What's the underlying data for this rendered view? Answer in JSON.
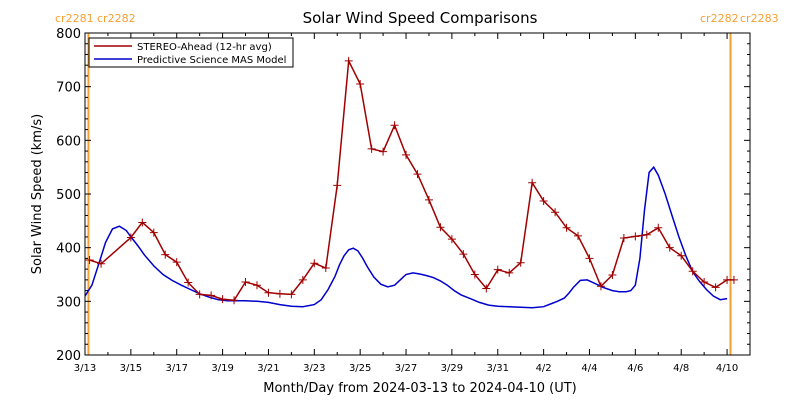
{
  "chart_data": {
    "type": "line",
    "title": "Solar Wind Speed Comparisons",
    "xlabel": "Month/Day from 2024-03-13 to 2024-04-10 (UT)",
    "ylabel": "Solar Wind Speed (km/s)",
    "start_date": "2024-03-13",
    "xlim": [
      0,
      29
    ],
    "ylim": [
      200,
      800
    ],
    "y_ticks": [
      "200",
      "300",
      "400",
      "500",
      "600",
      "700",
      "800"
    ],
    "x_ticks": [
      {
        "day": 0,
        "label": "3/13"
      },
      {
        "day": 2,
        "label": "3/15"
      },
      {
        "day": 4,
        "label": "3/17"
      },
      {
        "day": 6,
        "label": "3/19"
      },
      {
        "day": 8,
        "label": "3/21"
      },
      {
        "day": 10,
        "label": "3/23"
      },
      {
        "day": 12,
        "label": "3/25"
      },
      {
        "day": 14,
        "label": "3/27"
      },
      {
        "day": 16,
        "label": "3/29"
      },
      {
        "day": 18,
        "label": "3/31"
      },
      {
        "day": 20,
        "label": "4/2"
      },
      {
        "day": 22,
        "label": "4/4"
      },
      {
        "day": 24,
        "label": "4/6"
      },
      {
        "day": 26,
        "label": "4/8"
      },
      {
        "day": 28,
        "label": "4/10"
      }
    ],
    "legend_position": "top-left",
    "grid": false,
    "series": [
      {
        "name": "STEREO-Ahead (12-hr avg)",
        "color": "#a00000",
        "marker": "plus",
        "x": [
          0.2,
          0.7,
          2.0,
          2.5,
          3.0,
          3.5,
          4.0,
          4.5,
          5.0,
          5.5,
          6.0,
          6.5,
          7.0,
          7.5,
          8.0,
          8.5,
          9.0,
          9.5,
          10.0,
          10.5,
          11.0,
          11.5,
          12.0,
          12.5,
          13.0,
          13.5,
          14.0,
          14.5,
          15.0,
          15.5,
          16.0,
          16.5,
          17.0,
          17.5,
          18.0,
          18.5,
          19.0,
          19.5,
          20.0,
          20.5,
          21.0,
          21.5,
          22.0,
          22.5,
          23.0,
          23.5,
          24.0,
          24.5,
          25.0,
          25.5,
          26.0,
          26.5,
          27.0,
          27.5,
          28.0,
          28.3
        ],
        "values": [
          377,
          370,
          419,
          447,
          428,
          387,
          373,
          335,
          313,
          311,
          304,
          302,
          336,
          330,
          316,
          314,
          313,
          340,
          371,
          362,
          516,
          748,
          705,
          584,
          579,
          628,
          573,
          537,
          489,
          438,
          416,
          388,
          350,
          324,
          359,
          353,
          372,
          521,
          487,
          466,
          437,
          422,
          380,
          328,
          349,
          418,
          421,
          424,
          437,
          400,
          385,
          356,
          336,
          326,
          340,
          340
        ]
      },
      {
        "name": "Predictive Science MAS Model",
        "color": "#0000cc",
        "marker": "none",
        "x": [
          0,
          0.3,
          0.6,
          0.9,
          1.2,
          1.5,
          1.8,
          2.0,
          2.3,
          2.6,
          3.0,
          3.4,
          3.8,
          4.2,
          4.6,
          5.0,
          5.4,
          5.8,
          6.2,
          6.6,
          7.0,
          7.5,
          8.0,
          8.5,
          9.0,
          9.5,
          10.0,
          10.3,
          10.6,
          10.9,
          11.1,
          11.3,
          11.5,
          11.7,
          11.9,
          12.1,
          12.3,
          12.6,
          12.9,
          13.2,
          13.5,
          13.8,
          14.0,
          14.3,
          14.6,
          14.9,
          15.2,
          15.5,
          15.8,
          16.1,
          16.4,
          16.8,
          17.2,
          17.6,
          18.0,
          18.5,
          19.0,
          19.5,
          20.0,
          20.3,
          20.6,
          20.9,
          21.1,
          21.3,
          21.6,
          21.9,
          22.2,
          22.6,
          23.0,
          23.3,
          23.6,
          23.8,
          24.0,
          24.2,
          24.4,
          24.6,
          24.8,
          25.0,
          25.3,
          25.6,
          25.9,
          26.2,
          26.5,
          26.8,
          27.1,
          27.4,
          27.7,
          28.0
        ],
        "values": [
          310,
          330,
          370,
          410,
          435,
          440,
          432,
          420,
          404,
          386,
          366,
          350,
          339,
          330,
          322,
          314,
          308,
          303,
          301,
          301,
          301,
          300,
          298,
          294,
          291,
          290,
          294,
          303,
          322,
          346,
          368,
          385,
          396,
          399,
          394,
          381,
          365,
          345,
          332,
          327,
          330,
          342,
          350,
          353,
          351,
          348,
          344,
          338,
          330,
          320,
          312,
          305,
          298,
          293,
          291,
          290,
          289,
          288,
          290,
          295,
          300,
          306,
          315,
          326,
          339,
          340,
          334,
          326,
          320,
          318,
          318,
          320,
          330,
          380,
          470,
          540,
          550,
          535,
          500,
          460,
          420,
          385,
          355,
          337,
          322,
          310,
          303,
          305
        ]
      }
    ],
    "vertical_markers": [
      {
        "day": 0.15,
        "color": "#f5a033"
      },
      {
        "day": 28.15,
        "color": "#f5a033"
      }
    ],
    "carrington_labels": {
      "left": [
        "cr2281",
        "cr2282"
      ],
      "right": [
        "cr2282",
        "cr2283"
      ],
      "color": "#f5a033"
    }
  }
}
